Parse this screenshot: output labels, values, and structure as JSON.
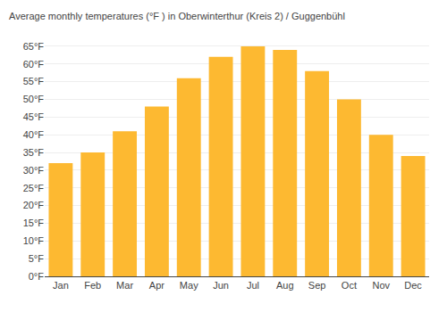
{
  "chart_data": {
    "type": "bar",
    "title": "Average monthly temperatures (°F ) in Oberwinterthur (Kreis 2) / Guggenbühl",
    "categories": [
      "Jan",
      "Feb",
      "Mar",
      "Apr",
      "May",
      "Jun",
      "Jul",
      "Aug",
      "Sep",
      "Oct",
      "Nov",
      "Dec"
    ],
    "values": [
      32,
      35,
      41,
      48,
      56,
      62,
      65,
      64,
      58,
      50,
      40,
      34
    ],
    "color": "#FDB931",
    "ylim": [
      0,
      68
    ],
    "yticks": [
      {
        "value": 0,
        "label": "0°F"
      },
      {
        "value": 5,
        "label": "5°F"
      },
      {
        "value": 10,
        "label": "10°F"
      },
      {
        "value": 15,
        "label": "15°F"
      },
      {
        "value": 20,
        "label": "20°F"
      },
      {
        "value": 25,
        "label": "25°F"
      },
      {
        "value": 30,
        "label": "30°F"
      },
      {
        "value": 35,
        "label": "35°F"
      },
      {
        "value": 40,
        "label": "40°F"
      },
      {
        "value": 45,
        "label": "45°F"
      },
      {
        "value": 50,
        "label": "50°F"
      },
      {
        "value": 55,
        "label": "55°F"
      },
      {
        "value": 60,
        "label": "60°F"
      },
      {
        "value": 65,
        "label": "65°F"
      }
    ],
    "grid": true
  }
}
